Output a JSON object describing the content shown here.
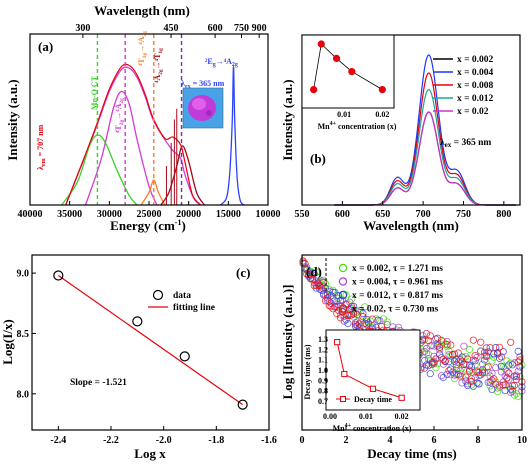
{
  "colors": {
    "a_red": "#e8000b",
    "a_green": "#3cd22a",
    "a_magenta": "#d53ad5",
    "a_blue": "#2b42ff",
    "a_orange": "#ff7b2a",
    "a_darkred": "#a40a1a",
    "a_purple": "#7a2fa0",
    "a_inset": "#c03bd8",
    "b_series": [
      "#000000",
      "#1f35ff",
      "#e8000b",
      "#1aa89a",
      "#cc33cc"
    ],
    "c_line": "#e8000b",
    "d_series": [
      "#44dd11",
      "#aa44cc",
      "#3344dd",
      "#ee1111"
    ]
  },
  "chart_data": [
    {
      "panel": "(a)",
      "type": "line",
      "xlabel": "Energy (cm-1)",
      "xlabel_main": "Energy (cm",
      "xlabel_sup": "-1",
      "xlabel_tail": ")",
      "ylabel": "Intensity (a.u.)",
      "top_xlabel": "Wavelength (nm)",
      "xlim": [
        40000,
        10000
      ],
      "ylim": [
        0,
        1.1
      ],
      "xticks": [
        40000,
        35000,
        30000,
        25000,
        20000,
        15000,
        10000
      ],
      "xtick_labels": [
        "40000",
        "35000",
        "30000",
        "25000",
        "20000",
        "15000",
        "10000"
      ],
      "top_ticks": [
        300,
        450,
        600,
        750,
        900
      ],
      "top_tick_labels": [
        "300",
        "450",
        "600",
        "750",
        "900"
      ],
      "annotations": {
        "mnoct": "Mn-O CT",
        "lem_main": "λ",
        "lem_sub": "em",
        "lem_val": " = 707 nm",
        "lex_main": "λ",
        "lex_sub": "ex",
        "lex_val": " = 365 nm",
        "e2g": "²E",
        "e2g_sub": "g",
        "e2g_arrow": "→",
        "a4": "⁴A",
        "a4_sub": "2g",
        "t2": "⁴T",
        "t1": "⁴T",
        "t2_sub": "2g",
        "t1_sub": "1g",
        "t2_arrow": "→⁴A",
        "t1_arrow": "→⁴A",
        "ta_sub": "2g",
        "a_left": "⁴A",
        "a_left_sub": "2g",
        "a_left_arrow": "→",
        "t_top": "⁴T",
        "t_top_sub": "1g"
      },
      "series": [
        {
          "id": "exc_total",
          "values": [
            [
              35500,
              0.0
            ],
            [
              33000,
              0.32
            ],
            [
              31500,
              0.52
            ],
            [
              30000,
              0.73
            ],
            [
              28500,
              0.87
            ],
            [
              27500,
              0.88
            ],
            [
              26500,
              0.82
            ],
            [
              25500,
              0.7
            ],
            [
              24500,
              0.55
            ],
            [
              23000,
              0.42
            ],
            [
              22000,
              0.35
            ],
            [
              21000,
              0.3
            ],
            [
              20500,
              0.2
            ],
            [
              19500,
              0.06
            ],
            [
              18500,
              0.0
            ]
          ]
        },
        {
          "id": "mn_o_ct",
          "values": [
            [
              36000,
              0.0
            ],
            [
              34000,
              0.15
            ],
            [
              32500,
              0.38
            ],
            [
              31500,
              0.45
            ],
            [
              30500,
              0.4
            ],
            [
              29000,
              0.22
            ],
            [
              27500,
              0.06
            ],
            [
              26500,
              0.0
            ]
          ]
        },
        {
          "id": "t1_band",
          "values": [
            [
              33000,
              0.0
            ],
            [
              31000,
              0.3
            ],
            [
              29500,
              0.62
            ],
            [
              28500,
              0.73
            ],
            [
              27500,
              0.65
            ],
            [
              26500,
              0.42
            ],
            [
              25000,
              0.12
            ],
            [
              24000,
              0.0
            ]
          ]
        },
        {
          "id": "t2_band",
          "values": [
            [
              26000,
              0.0
            ],
            [
              25000,
              0.08
            ],
            [
              24400,
              0.16
            ],
            [
              23800,
              0.08
            ],
            [
              23000,
              0.0
            ]
          ]
        },
        {
          "id": "sub_red",
          "values": [
            [
              23500,
              0.0
            ],
            [
              22500,
              0.08
            ],
            [
              21500,
              0.25
            ],
            [
              20800,
              0.38
            ],
            [
              20000,
              0.28
            ],
            [
              19000,
              0.08
            ],
            [
              18000,
              0.0
            ]
          ]
        },
        {
          "id": "emission",
          "values": [
            [
              16000,
              0.0
            ],
            [
              15200,
              0.05
            ],
            [
              14800,
              0.22
            ],
            [
              14500,
              0.55
            ],
            [
              14350,
              0.89
            ],
            [
              14200,
              0.55
            ],
            [
              13900,
              0.18
            ],
            [
              13500,
              0.03
            ],
            [
              13000,
              0.0
            ]
          ]
        }
      ],
      "vlines": [
        31500,
        28000,
        24400,
        20900
      ]
    },
    {
      "panel": "(b)",
      "type": "line",
      "xlabel": "Wavelength (nm)",
      "ylabel": "Intensity (a.u.)",
      "xlim": [
        550,
        820
      ],
      "ylim": [
        0,
        1.1
      ],
      "xticks": [
        550,
        600,
        650,
        700,
        750,
        800
      ],
      "annotation_main": "λ",
      "annotation_sub": "ex",
      "annotation_val": " = 365 nm",
      "legend": [
        "x = 0.002",
        "x = 0.004",
        "x = 0.008",
        "x = 0.012",
        "x = 0.02"
      ],
      "peak_x": 707,
      "peaks": [
        0.62,
        1.0,
        0.88,
        0.77,
        0.62
      ],
      "inset": {
        "type": "scatter",
        "xlabel_main": "Mn",
        "xlabel_sup": "4+",
        "xlabel_tail": " concentration (x)",
        "xticks": [
          0.01,
          0.02
        ],
        "xtick_labels": [
          "0.01",
          "0.02"
        ],
        "x": [
          0.002,
          0.004,
          0.008,
          0.012,
          0.02
        ],
        "y": [
          0.62,
          1.0,
          0.88,
          0.77,
          0.62
        ],
        "xlim": [
          0,
          0.022
        ],
        "ylim": [
          0.5,
          1.05
        ]
      }
    },
    {
      "panel": "(c)",
      "type": "scatter",
      "xlabel": "Log x",
      "ylabel": "Log(I/x)",
      "xlim": [
        -2.5,
        -1.6
      ],
      "ylim": [
        7.7,
        9.15
      ],
      "xticks": [
        -2.4,
        -2.2,
        -2.0,
        -1.8,
        -1.6
      ],
      "xtick_labels": [
        "-2.4",
        "-2.2",
        "-2.0",
        "-1.8",
        "-1.6"
      ],
      "yticks": [
        8.0,
        8.5,
        9.0
      ],
      "ytick_labels": [
        "8.0",
        "8.5",
        "9.0"
      ],
      "x": [
        -2.4,
        -2.1,
        -1.92,
        -1.7
      ],
      "y": [
        8.98,
        8.6,
        8.31,
        7.91
      ],
      "fit": {
        "x": [
          -2.4,
          -1.7
        ],
        "y": [
          8.98,
          7.91
        ]
      },
      "legend": [
        "data",
        "fitting line"
      ],
      "annotation": "Slope = -1.521"
    },
    {
      "panel": "(d)",
      "type": "scatter",
      "xlabel": "Decay time (ms)",
      "ylabel": "Log [Intensity (a.u.)]",
      "xlim": [
        0,
        10
      ],
      "xticks": [
        0,
        2,
        4,
        6,
        8,
        10
      ],
      "series": [
        {
          "name": "x = 0.002, τ = 1.271 ms",
          "tau": 1.271,
          "floor": 0.18
        },
        {
          "name": "x = 0.004, τ = 0.961 ms",
          "tau": 0.961,
          "floor": 0.27
        },
        {
          "name": "x = 0.012, τ = 0.817 ms",
          "tau": 0.817,
          "floor": 0.31
        },
        {
          "name": "x = 0.02, τ = 0.730 ms",
          "tau": 0.73,
          "floor": 0.36
        }
      ],
      "inset": {
        "type": "line",
        "ylabel": "Decay time (ms)",
        "xlabel_main": "Mn",
        "xlabel_sup": "4+",
        "xlabel_tail": " concentration (x)",
        "legend": "Decay time",
        "x": [
          0.002,
          0.004,
          0.012,
          0.02
        ],
        "y": [
          1.271,
          0.961,
          0.817,
          0.73
        ],
        "xlim": [
          0,
          0.024
        ],
        "ylim": [
          0.65,
          1.35
        ],
        "xticks": [
          0.0,
          0.01,
          0.02
        ],
        "xtick_labels": [
          "0.00",
          "0.01",
          "0.02"
        ],
        "yticks": [
          0.7,
          0.8,
          0.9,
          1.0,
          1.1,
          1.2,
          1.3
        ],
        "ytick_labels": [
          "0.7",
          "0.8",
          "0.9",
          "1.0",
          "1.1",
          "1.2",
          "1.3"
        ]
      }
    }
  ]
}
